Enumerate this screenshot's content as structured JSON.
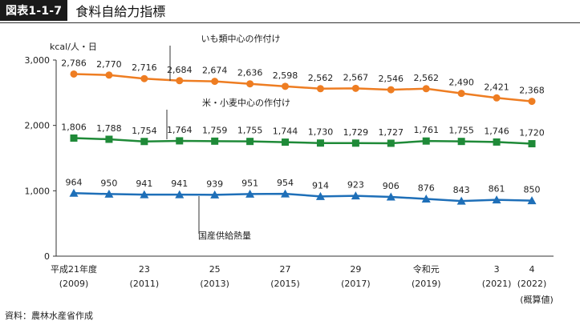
{
  "header": {
    "figure_label": "図表1-1-7",
    "title": "食料自給力指標"
  },
  "source_note": "資料：農林水産省作成",
  "chart_data": {
    "type": "line",
    "ylabel": "kcal/人・日",
    "ylim": [
      0,
      3000
    ],
    "yticks": [
      "0",
      "1,000",
      "2,000",
      "3,000"
    ],
    "grid": false,
    "x": [
      2009,
      2010,
      2011,
      2012,
      2013,
      2014,
      2015,
      2016,
      2017,
      2018,
      2019,
      2020,
      2021,
      2022
    ],
    "x_tick_labels": [
      {
        "x": 2009,
        "line1": "平成21年度",
        "line2": "(2009)",
        "line3": ""
      },
      {
        "x": 2011,
        "line1": "23",
        "line2": "(2011)",
        "line3": ""
      },
      {
        "x": 2013,
        "line1": "25",
        "line2": "(2013)",
        "line3": ""
      },
      {
        "x": 2015,
        "line1": "27",
        "line2": "(2015)",
        "line3": ""
      },
      {
        "x": 2017,
        "line1": "29",
        "line2": "(2017)",
        "line3": ""
      },
      {
        "x": 2019,
        "line1": "令和元",
        "line2": "(2019)",
        "line3": ""
      },
      {
        "x": 2021,
        "line1": "3",
        "line2": "(2021)",
        "line3": ""
      },
      {
        "x": 2022,
        "line1": "4",
        "line2": "(2022)",
        "line3": "(概算値)"
      }
    ],
    "series": [
      {
        "name": "いも類中心の作付け",
        "color": "#ee7d22",
        "marker": "circle",
        "values": [
          2786,
          2770,
          2716,
          2684,
          2674,
          2636,
          2598,
          2562,
          2567,
          2546,
          2562,
          2490,
          2421,
          2368
        ],
        "value_labels": [
          "2,786",
          "2,770",
          "2,716",
          "2,684",
          "2,674",
          "2,636",
          "2,598",
          "2,562",
          "2,567",
          "2,546",
          "2,562",
          "2,490",
          "2,421",
          "2,368"
        ]
      },
      {
        "name": "米・小麦中心の作付け",
        "color": "#1f8a38",
        "marker": "square",
        "values": [
          1806,
          1788,
          1754,
          1764,
          1759,
          1755,
          1744,
          1730,
          1729,
          1727,
          1761,
          1755,
          1746,
          1720
        ],
        "value_labels": [
          "1,806",
          "1,788",
          "1,754",
          "1,764",
          "1,759",
          "1,755",
          "1,744",
          "1,730",
          "1,729",
          "1,727",
          "1,761",
          "1,755",
          "1,746",
          "1,720"
        ]
      },
      {
        "name": "国産供給熱量",
        "color": "#1e6fb8",
        "marker": "triangle",
        "values": [
          964,
          950,
          941,
          941,
          939,
          951,
          954,
          914,
          923,
          906,
          876,
          843,
          861,
          850
        ],
        "value_labels": [
          "964",
          "950",
          "941",
          "941",
          "939",
          "951",
          "954",
          "914",
          "923",
          "906",
          "876",
          "843",
          "861",
          "850"
        ]
      }
    ]
  }
}
